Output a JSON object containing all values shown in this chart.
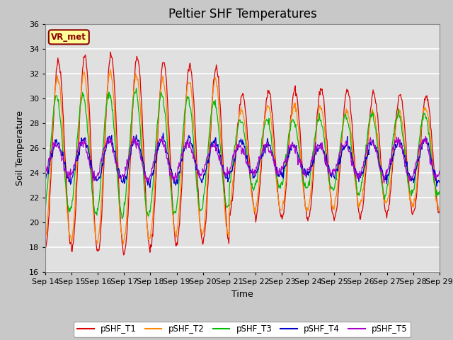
{
  "title": "Peltier SHF Temperatures",
  "xlabel": "Time",
  "ylabel": "Soil Temperature",
  "ylim": [
    16,
    36
  ],
  "yticks": [
    16,
    18,
    20,
    22,
    24,
    26,
    28,
    30,
    32,
    34,
    36
  ],
  "x_labels": [
    "Sep 14",
    "Sep 15",
    "Sep 16",
    "Sep 17",
    "Sep 18",
    "Sep 19",
    "Sep 20",
    "Sep 21",
    "Sep 22",
    "Sep 23",
    "Sep 24",
    "Sep 25",
    "Sep 26",
    "Sep 27",
    "Sep 28",
    "Sep 29"
  ],
  "series_colors": {
    "pSHF_T1": "#dd0000",
    "pSHF_T2": "#ff8800",
    "pSHF_T3": "#00bb00",
    "pSHF_T4": "#0000cc",
    "pSHF_T5": "#aa00cc"
  },
  "annotation_text": "VR_met",
  "fig_bg_color": "#c8c8c8",
  "plot_bg_color": "#e0e0e0",
  "grid_color": "white",
  "title_fontsize": 12,
  "label_fontsize": 9,
  "tick_fontsize": 8
}
